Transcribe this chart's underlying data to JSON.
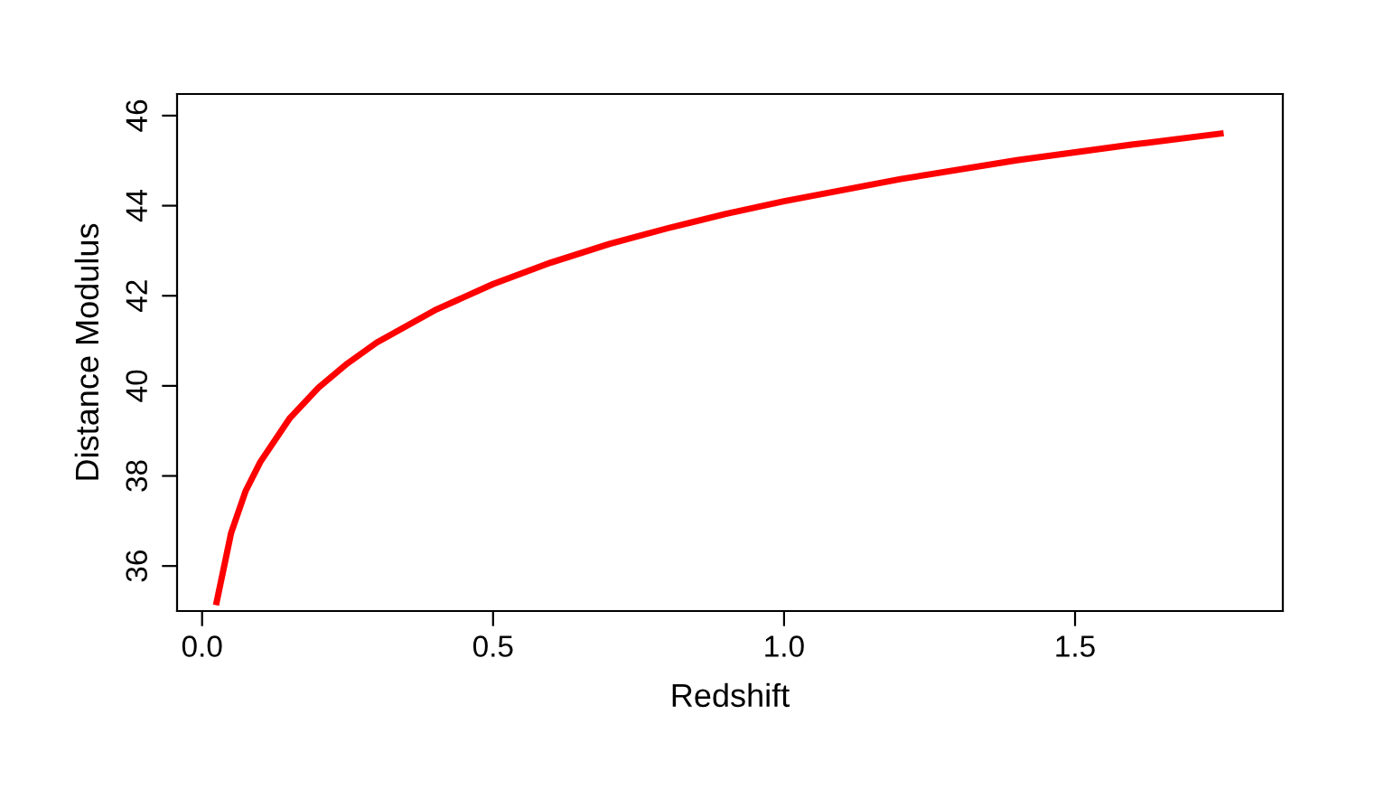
{
  "chart_data": {
    "type": "line",
    "xlabel": "Redshift",
    "ylabel": "Distance Modulus",
    "x": [
      0.025,
      0.05,
      0.075,
      0.1,
      0.15,
      0.2,
      0.25,
      0.3,
      0.4,
      0.5,
      0.6,
      0.7,
      0.8,
      0.9,
      1.0,
      1.2,
      1.4,
      1.6,
      1.75
    ],
    "series": [
      {
        "color": "#ff0000",
        "values": [
          35.2,
          36.74,
          37.67,
          38.31,
          39.27,
          39.96,
          40.5,
          40.96,
          41.68,
          42.26,
          42.74,
          43.15,
          43.5,
          43.82,
          44.1,
          44.59,
          45.01,
          45.36,
          45.6
        ]
      }
    ],
    "xlim": [
      -0.043,
      1.857
    ],
    "ylim": [
      35.0,
      46.48
    ],
    "xticks": [
      {
        "value": 0.0,
        "label": "0.0"
      },
      {
        "value": 0.5,
        "label": "0.5"
      },
      {
        "value": 1.0,
        "label": "1.0"
      },
      {
        "value": 1.5,
        "label": "1.5"
      }
    ],
    "yticks": [
      36,
      38,
      40,
      42,
      44,
      46
    ],
    "grid": false,
    "legend": false,
    "marker": "none",
    "line_style": "solid"
  }
}
